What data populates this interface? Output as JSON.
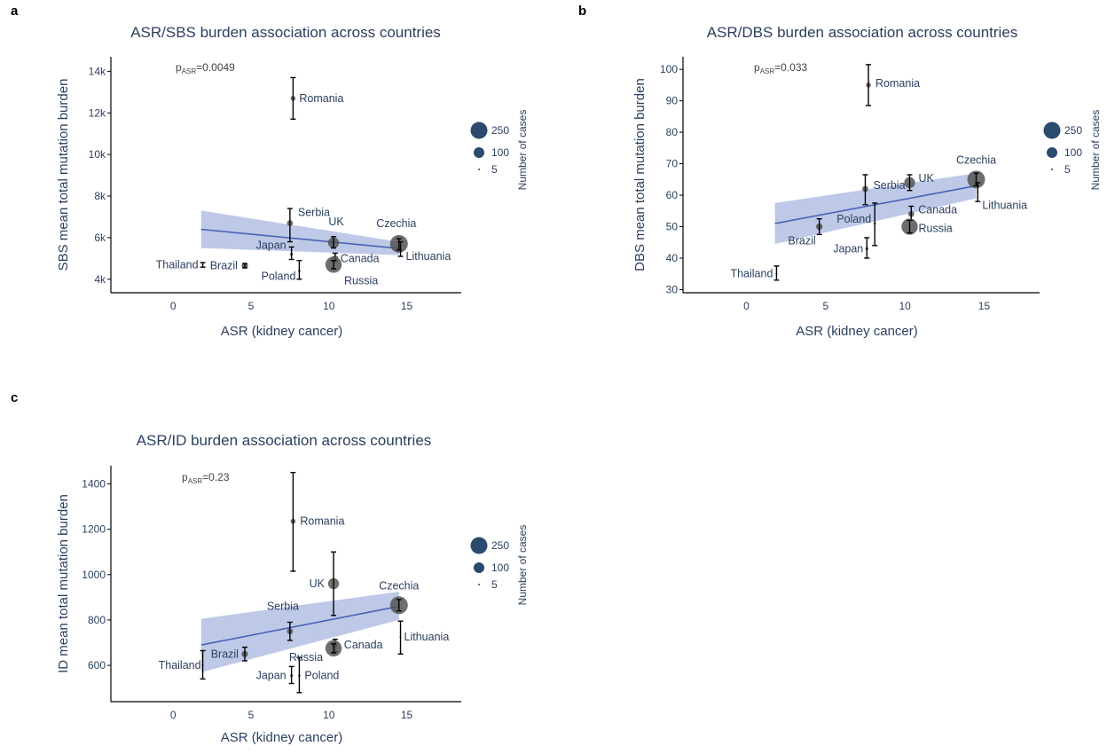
{
  "panels": [
    "a",
    "b",
    "c"
  ],
  "legend": {
    "title": "Number of cases",
    "items": [
      "250",
      "100",
      "5"
    ],
    "sizes": [
      250,
      100,
      5
    ]
  },
  "colors": {
    "point": "#555555",
    "line": "#4a63b6",
    "band": "#b3bfe3",
    "axis": "#000000",
    "text": "#2a3f5f",
    "legend_marker": "#2a4a6e"
  },
  "chart_data": [
    {
      "type": "scatter",
      "title": "ASR/SBS burden association across countries",
      "xlabel": "ASR (kidney cancer)",
      "ylabel": "SBS mean total mutation burden",
      "xlim": [
        -4,
        18.5
      ],
      "ylim": [
        3350,
        14700
      ],
      "x_ticks": [
        0,
        5,
        10,
        15
      ],
      "x_tick_labels": [
        "0",
        "5",
        "10",
        "15"
      ],
      "y_ticks": [
        4000,
        6000,
        8000,
        10000,
        12000,
        14000
      ],
      "y_tick_labels": [
        "4k",
        "6k",
        "8k",
        "10k",
        "12k",
        "14k"
      ],
      "p_prefix": "p",
      "p_sub": "ASR",
      "p_value": "=0.0049",
      "fit": {
        "x": [
          1.8,
          14.5
        ],
        "y": [
          6400,
          5480
        ],
        "band_upper": [
          7300,
          5800
        ],
        "band_lower": [
          5500,
          5160
        ]
      },
      "points": [
        {
          "country": "Thailand",
          "x": 1.9,
          "y": 4700,
          "err_lo": 4580,
          "err_hi": 4800,
          "n": 3
        },
        {
          "country": "Brazil",
          "x": 4.6,
          "y": 4650,
          "err_lo": 4550,
          "err_hi": 4750,
          "n": 35
        },
        {
          "country": "Japan",
          "x": 7.6,
          "y": 5200,
          "err_lo": 4950,
          "err_hi": 5550,
          "n": 8
        },
        {
          "country": "Poland",
          "x": 8.1,
          "y": 4400,
          "err_lo": 4000,
          "err_hi": 4900,
          "n": 5
        },
        {
          "country": "Serbia",
          "x": 7.5,
          "y": 6700,
          "err_lo": 5800,
          "err_hi": 7400,
          "n": 30
        },
        {
          "country": "Romania",
          "x": 7.7,
          "y": 12700,
          "err_lo": 11700,
          "err_hi": 13700,
          "n": 20
        },
        {
          "country": "UK",
          "x": 10.3,
          "y": 5750,
          "err_lo": 5500,
          "err_hi": 6050,
          "n": 100
        },
        {
          "country": "Canada",
          "x": 10.4,
          "y": 5000,
          "err_lo": 4850,
          "err_hi": 5250,
          "n": 30
        },
        {
          "country": "Russia",
          "x": 10.3,
          "y": 4700,
          "err_lo": 4500,
          "err_hi": 4900,
          "n": 220
        },
        {
          "country": "Czechia",
          "x": 14.5,
          "y": 5700,
          "err_lo": 5400,
          "err_hi": 5950,
          "n": 260
        },
        {
          "country": "Lithuania",
          "x": 14.6,
          "y": 5450,
          "err_lo": 5100,
          "err_hi": 5800,
          "n": 3
        }
      ]
    },
    {
      "type": "scatter",
      "title": "ASR/DBS burden association across countries",
      "xlabel": "ASR (kidney cancer)",
      "ylabel": "DBS mean total mutation burden",
      "xlim": [
        -4,
        18.5
      ],
      "ylim": [
        29,
        104
      ],
      "x_ticks": [
        0,
        5,
        10,
        15
      ],
      "x_tick_labels": [
        "0",
        "5",
        "10",
        "15"
      ],
      "y_ticks": [
        30,
        40,
        50,
        60,
        70,
        80,
        90,
        100
      ],
      "y_tick_labels": [
        "30",
        "40",
        "50",
        "60",
        "70",
        "80",
        "90",
        "100"
      ],
      "p_prefix": "p",
      "p_sub": "ASR",
      "p_value": "=0.033",
      "fit": {
        "x": [
          1.8,
          14.5
        ],
        "y": [
          51,
          63
        ],
        "band_upper": [
          57.5,
          67
        ],
        "band_lower": [
          44.5,
          59
        ]
      },
      "points": [
        {
          "country": "Thailand",
          "x": 1.9,
          "y": 35,
          "err_lo": 33,
          "err_hi": 37.5,
          "n": 3
        },
        {
          "country": "Brazil",
          "x": 4.6,
          "y": 50,
          "err_lo": 47.5,
          "err_hi": 52.5,
          "n": 35
        },
        {
          "country": "Japan",
          "x": 7.6,
          "y": 43,
          "err_lo": 40,
          "err_hi": 46.5,
          "n": 8
        },
        {
          "country": "Poland",
          "x": 8.1,
          "y": 51,
          "err_lo": 44,
          "err_hi": 57.5,
          "n": 5
        },
        {
          "country": "Serbia",
          "x": 7.5,
          "y": 62,
          "err_lo": 57,
          "err_hi": 66.5,
          "n": 30
        },
        {
          "country": "Romania",
          "x": 7.7,
          "y": 95,
          "err_lo": 88.5,
          "err_hi": 101.5,
          "n": 20
        },
        {
          "country": "UK",
          "x": 10.3,
          "y": 64,
          "err_lo": 61.5,
          "err_hi": 66.5,
          "n": 100
        },
        {
          "country": "Canada",
          "x": 10.4,
          "y": 54,
          "err_lo": 52,
          "err_hi": 56.5,
          "n": 30
        },
        {
          "country": "Russia",
          "x": 10.3,
          "y": 50,
          "err_lo": 48,
          "err_hi": 52,
          "n": 220
        },
        {
          "country": "Czechia",
          "x": 14.5,
          "y": 65,
          "err_lo": 63,
          "err_hi": 67,
          "n": 260
        },
        {
          "country": "Lithuania",
          "x": 14.6,
          "y": 61,
          "err_lo": 58,
          "err_hi": 64,
          "n": 3
        }
      ]
    },
    {
      "type": "scatter",
      "title": "ASR/ID burden association across countries",
      "xlabel": "ASR (kidney cancer)",
      "ylabel": "ID mean total mutation burden",
      "xlim": [
        -4,
        18.5
      ],
      "ylim": [
        440,
        1480
      ],
      "x_ticks": [
        0,
        5,
        10,
        15
      ],
      "x_tick_labels": [
        "0",
        "5",
        "10",
        "15"
      ],
      "y_ticks": [
        600,
        800,
        1000,
        1200,
        1400
      ],
      "y_tick_labels": [
        "600",
        "800",
        "1000",
        "1200",
        "1400"
      ],
      "p_prefix": "p",
      "p_sub": "ASR",
      "p_value": "=0.23",
      "fit": {
        "x": [
          1.8,
          14.5
        ],
        "y": [
          690,
          860
        ],
        "band_upper": [
          805,
          925
        ],
        "band_lower": [
          570,
          800
        ]
      },
      "points": [
        {
          "country": "Thailand",
          "x": 1.9,
          "y": 600,
          "err_lo": 540,
          "err_hi": 665,
          "n": 3
        },
        {
          "country": "Brazil",
          "x": 4.6,
          "y": 650,
          "err_lo": 620,
          "err_hi": 680,
          "n": 35
        },
        {
          "country": "Japan",
          "x": 7.6,
          "y": 555,
          "err_lo": 520,
          "err_hi": 595,
          "n": 8
        },
        {
          "country": "Poland",
          "x": 8.1,
          "y": 555,
          "err_lo": 480,
          "err_hi": 635,
          "n": 5
        },
        {
          "country": "Serbia",
          "x": 7.5,
          "y": 750,
          "err_lo": 710,
          "err_hi": 790,
          "n": 30
        },
        {
          "country": "Romania",
          "x": 7.7,
          "y": 1235,
          "err_lo": 1015,
          "err_hi": 1450,
          "n": 20
        },
        {
          "country": "UK",
          "x": 10.3,
          "y": 960,
          "err_lo": 820,
          "err_hi": 1100,
          "n": 100
        },
        {
          "country": "Canada",
          "x": 10.4,
          "y": 690,
          "err_lo": 660,
          "err_hi": 715,
          "n": 30
        },
        {
          "country": "Russia",
          "x": 10.3,
          "y": 675,
          "err_lo": 655,
          "err_hi": 695,
          "n": 220
        },
        {
          "country": "Czechia",
          "x": 14.5,
          "y": 865,
          "err_lo": 840,
          "err_hi": 890,
          "n": 260
        },
        {
          "country": "Lithuania",
          "x": 14.6,
          "y": 725,
          "err_lo": 650,
          "err_hi": 795,
          "n": 3
        }
      ]
    }
  ]
}
